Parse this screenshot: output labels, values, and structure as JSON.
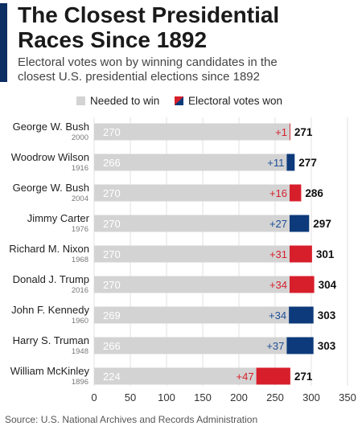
{
  "header": {
    "title_line1": "The Closest Presidential",
    "title_line2": "Races Since 1892",
    "subtitle_line1": "Electoral votes won by winning candidates in the",
    "subtitle_line2": "closest U.S. presidential elections since 1892"
  },
  "legend": {
    "needed_label": "Needed to win",
    "won_label": "Electoral votes won"
  },
  "source": "Source: U.S. National Archives and Records Administration",
  "colors": {
    "accent": "#0c2e63",
    "needed": "#d3d3d3",
    "republican": "#d71f2c",
    "democrat": "#0c3a7a",
    "margin_label_red": "#d71f2c",
    "margin_label_blue": "#1d4e95"
  },
  "chart_data": {
    "type": "bar",
    "orientation": "horizontal",
    "stacked": true,
    "xlim": [
      0,
      350
    ],
    "xticks": [
      0,
      50,
      100,
      150,
      200,
      250,
      300,
      350
    ],
    "grid": true,
    "legend_position": "top",
    "series_names": [
      "Needed to win",
      "Electoral votes won"
    ],
    "rows": [
      {
        "name": "George W. Bush",
        "year": "2000",
        "needed": 270,
        "margin": 1,
        "won": 271,
        "party": "R",
        "margin_label": "+1"
      },
      {
        "name": "Woodrow Wilson",
        "year": "1916",
        "needed": 266,
        "margin": 11,
        "won": 277,
        "party": "D",
        "margin_label": "+11"
      },
      {
        "name": "George W. Bush",
        "year": "2004",
        "needed": 270,
        "margin": 16,
        "won": 286,
        "party": "R",
        "margin_label": "+16"
      },
      {
        "name": "Jimmy Carter",
        "year": "1976",
        "needed": 270,
        "margin": 27,
        "won": 297,
        "party": "D",
        "margin_label": "+27"
      },
      {
        "name": "Richard M. Nixon",
        "year": "1968",
        "needed": 270,
        "margin": 31,
        "won": 301,
        "party": "R",
        "margin_label": "+31"
      },
      {
        "name": "Donald J. Trump",
        "year": "2016",
        "needed": 270,
        "margin": 34,
        "won": 304,
        "party": "R",
        "margin_label": "+34"
      },
      {
        "name": "John F. Kennedy",
        "year": "1960",
        "needed": 269,
        "margin": 34,
        "won": 303,
        "party": "D",
        "margin_label": "+34"
      },
      {
        "name": "Harry S. Truman",
        "year": "1948",
        "needed": 266,
        "margin": 37,
        "won": 303,
        "party": "D",
        "margin_label": "+37"
      },
      {
        "name": "William McKinley",
        "year": "1896",
        "needed": 224,
        "margin": 47,
        "won": 271,
        "party": "R",
        "margin_label": "+47"
      }
    ]
  }
}
